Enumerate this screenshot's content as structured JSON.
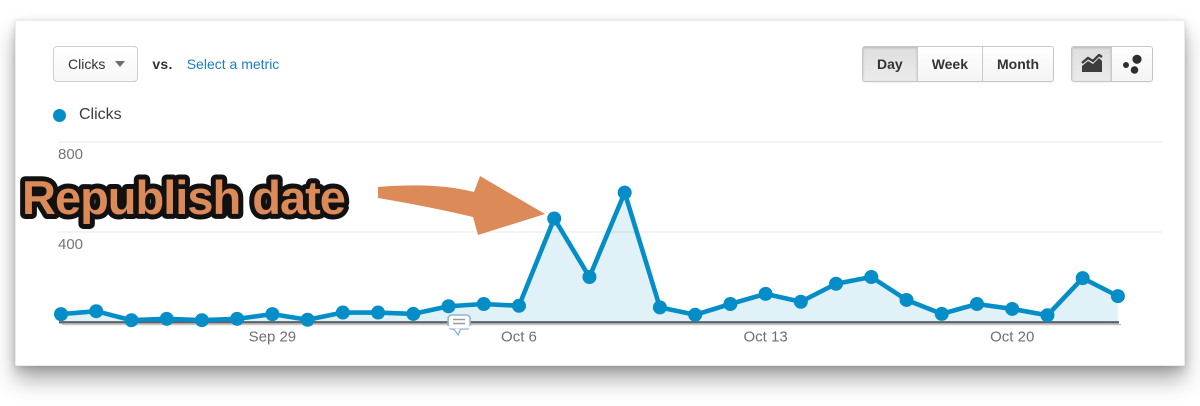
{
  "toolbar": {
    "metric_dropdown": {
      "label": "Clicks"
    },
    "vs_label": "vs.",
    "select_metric_label": "Select a metric",
    "granularity_buttons": [
      {
        "label": "Day",
        "active": true
      },
      {
        "label": "Week",
        "active": false
      },
      {
        "label": "Month",
        "active": false
      }
    ],
    "chart_type_buttons": [
      {
        "name": "area-chart-icon",
        "active": true
      },
      {
        "name": "motion-chart-icon",
        "active": false
      }
    ]
  },
  "legend": {
    "label": "Clicks",
    "color": "#058dc7"
  },
  "overlay_annotation": {
    "text": "Republish date",
    "fill_color": "#DB8A58",
    "outline_color": "#111111",
    "points_to": "Oct 7 spike"
  },
  "chart_data": {
    "type": "area",
    "title": "Clicks over time",
    "x": [
      "Sep 23",
      "Sep 24",
      "Sep 25",
      "Sep 26",
      "Sep 27",
      "Sep 28",
      "Sep 29",
      "Sep 30",
      "Oct 1",
      "Oct 2",
      "Oct 3",
      "Oct 4",
      "Oct 5",
      "Oct 6",
      "Oct 7",
      "Oct 8",
      "Oct 9",
      "Oct 10",
      "Oct 11",
      "Oct 12",
      "Oct 13",
      "Oct 14",
      "Oct 15",
      "Oct 16",
      "Oct 17",
      "Oct 18",
      "Oct 19",
      "Oct 20",
      "Oct 21",
      "Oct 22",
      "Oct 23"
    ],
    "series": [
      {
        "name": "Clicks",
        "color": "#058dc7",
        "values": [
          35,
          48,
          8,
          14,
          8,
          14,
          35,
          10,
          42,
          42,
          36,
          70,
          80,
          72,
          460,
          200,
          575,
          65,
          32,
          80,
          125,
          90,
          170,
          200,
          98,
          36,
          80,
          58,
          30,
          195,
          115
        ]
      }
    ],
    "x_tick_labels": [
      "Sep 29",
      "Oct 6",
      "Oct 13",
      "Oct 20"
    ],
    "x_tick_indices": [
      6,
      13,
      20,
      27
    ],
    "y_ticks": [
      400,
      800
    ],
    "ylim": [
      0,
      900
    ],
    "grid": "horizontal",
    "legend_position": "top-left",
    "axis_annotation_marker": {
      "icon": "note-bubble-icon",
      "x_index": 11.3
    }
  }
}
